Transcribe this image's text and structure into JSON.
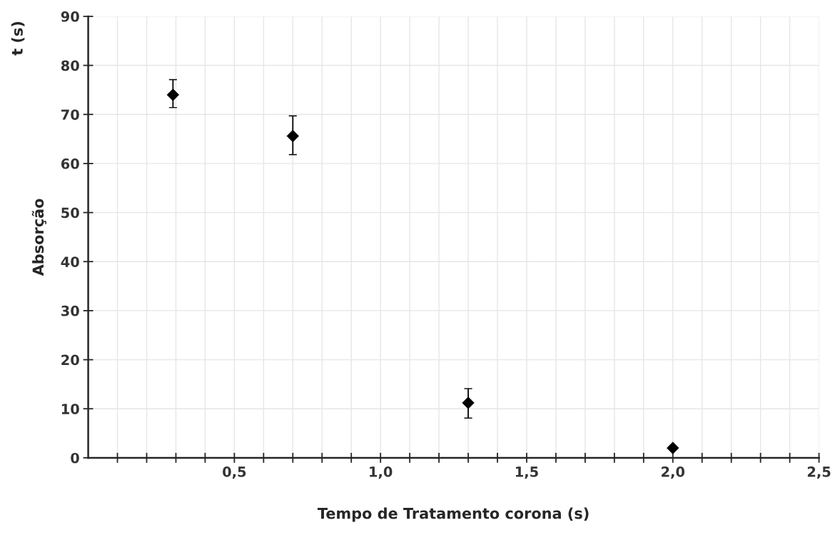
{
  "chart_data": {
    "type": "scatter",
    "xlabel": "Tempo de Tratamento corona (s)",
    "ylabel": "Absorção",
    "annotations": [
      "t (s)"
    ],
    "x": [
      0.29,
      0.7,
      1.3,
      2.0
    ],
    "series": [
      {
        "color": "#000000",
        "values": [
          74,
          65.6,
          11.2,
          2.0
        ],
        "errors": [
          [
            71.4,
            77.1
          ],
          [
            61.8,
            69.7
          ],
          [
            8.1,
            14.1
          ],
          null
        ]
      }
    ],
    "marker": "diamond",
    "grid": true,
    "xlim": [
      0,
      2.5
    ],
    "ylim": [
      0,
      90
    ],
    "xticks": [
      {
        "value": 0.1,
        "label": null
      },
      {
        "value": 0.2,
        "label": null
      },
      {
        "value": 0.3,
        "label": null
      },
      {
        "value": 0.4,
        "label": null
      },
      {
        "value": 0.5,
        "label": "0,5"
      },
      {
        "value": 0.6,
        "label": null
      },
      {
        "value": 0.7,
        "label": null
      },
      {
        "value": 0.8,
        "label": null
      },
      {
        "value": 0.9,
        "label": null
      },
      {
        "value": 1.0,
        "label": "1,0"
      },
      {
        "value": 1.1,
        "label": null
      },
      {
        "value": 1.2,
        "label": null
      },
      {
        "value": 1.3,
        "label": null
      },
      {
        "value": 1.4,
        "label": null
      },
      {
        "value": 1.5,
        "label": "1,5"
      },
      {
        "value": 1.6,
        "label": null
      },
      {
        "value": 1.7,
        "label": null
      },
      {
        "value": 1.8,
        "label": null
      },
      {
        "value": 1.9,
        "label": null
      },
      {
        "value": 2.0,
        "label": "2,0"
      },
      {
        "value": 2.1,
        "label": null
      },
      {
        "value": 2.2,
        "label": null
      },
      {
        "value": 2.3,
        "label": null
      },
      {
        "value": 2.4,
        "label": null
      },
      {
        "value": 2.5,
        "label": "2,5"
      }
    ],
    "yticks": [
      0,
      10,
      20,
      30,
      40,
      50,
      60,
      70,
      80,
      90
    ]
  }
}
